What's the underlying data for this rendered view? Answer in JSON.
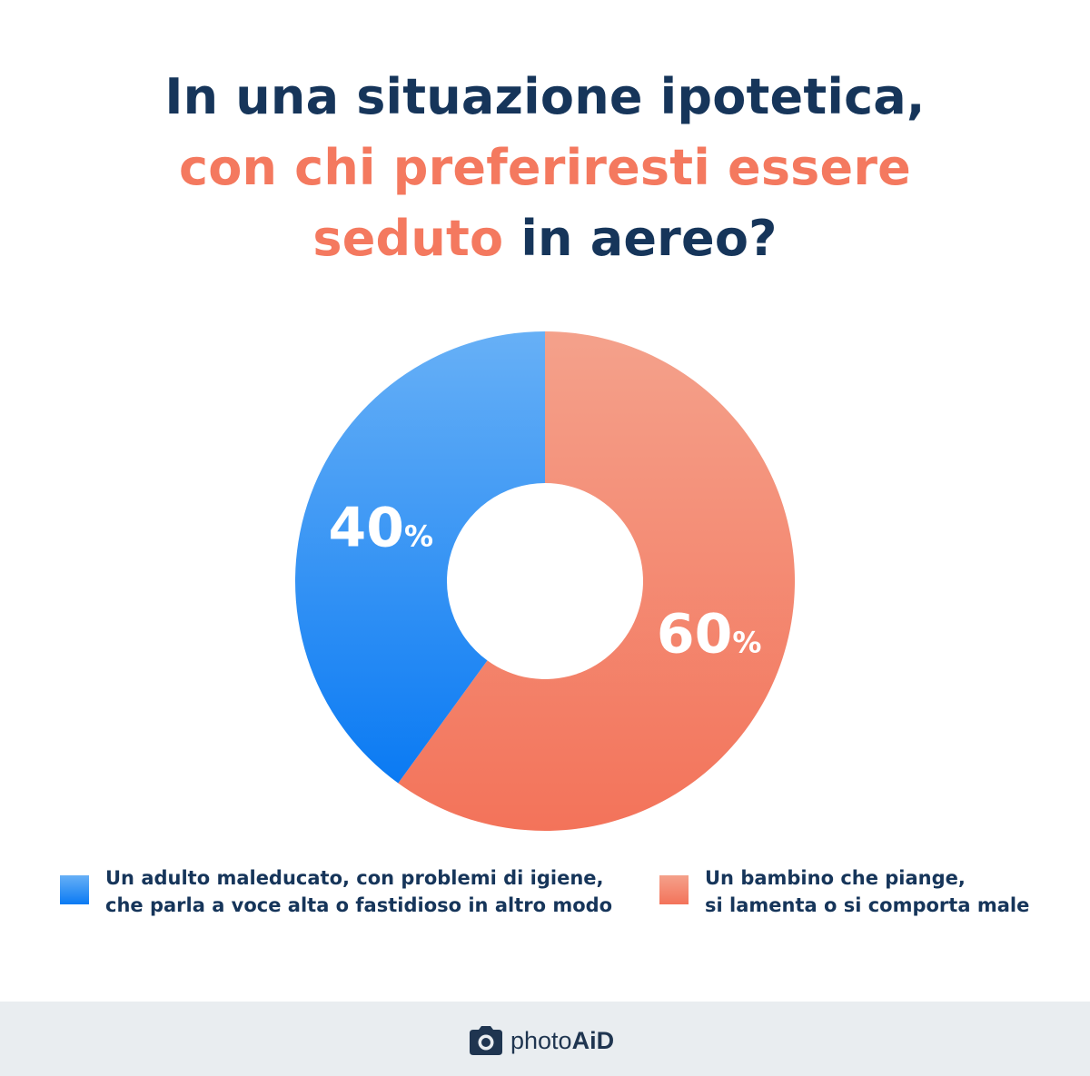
{
  "title": {
    "line1": "In una situazione ipotetica,",
    "line2": "con chi preferiresti essere",
    "line3_highlight": "seduto",
    "line3_rest": " in aereo?"
  },
  "colors": {
    "title": "#16355a",
    "highlight": "#f4795f",
    "blue_top": "#67b0f6",
    "blue_bottom": "#0a7af3",
    "coral_top": "#f4a18b",
    "coral_bottom": "#f3735a"
  },
  "chart_data": {
    "type": "pie",
    "donut": true,
    "start": "top",
    "direction": "clockwise",
    "slices": [
      {
        "value": 60,
        "display": "60",
        "unit": "%",
        "color": "coral"
      },
      {
        "value": 40,
        "display": "40",
        "unit": "%",
        "color": "blue"
      }
    ]
  },
  "legend": [
    {
      "lines": [
        "Un adulto maleducato, con problemi di igiene,",
        "che parla a voce alta o fastidioso in altro modo"
      ],
      "color": "blue"
    },
    {
      "lines": [
        "Un bambino che piange,",
        "si lamenta o si comporta male"
      ],
      "color": "coral"
    }
  ],
  "footer": {
    "brand_a": "photo",
    "brand_b": "AiD",
    "icon": "camera-icon"
  }
}
